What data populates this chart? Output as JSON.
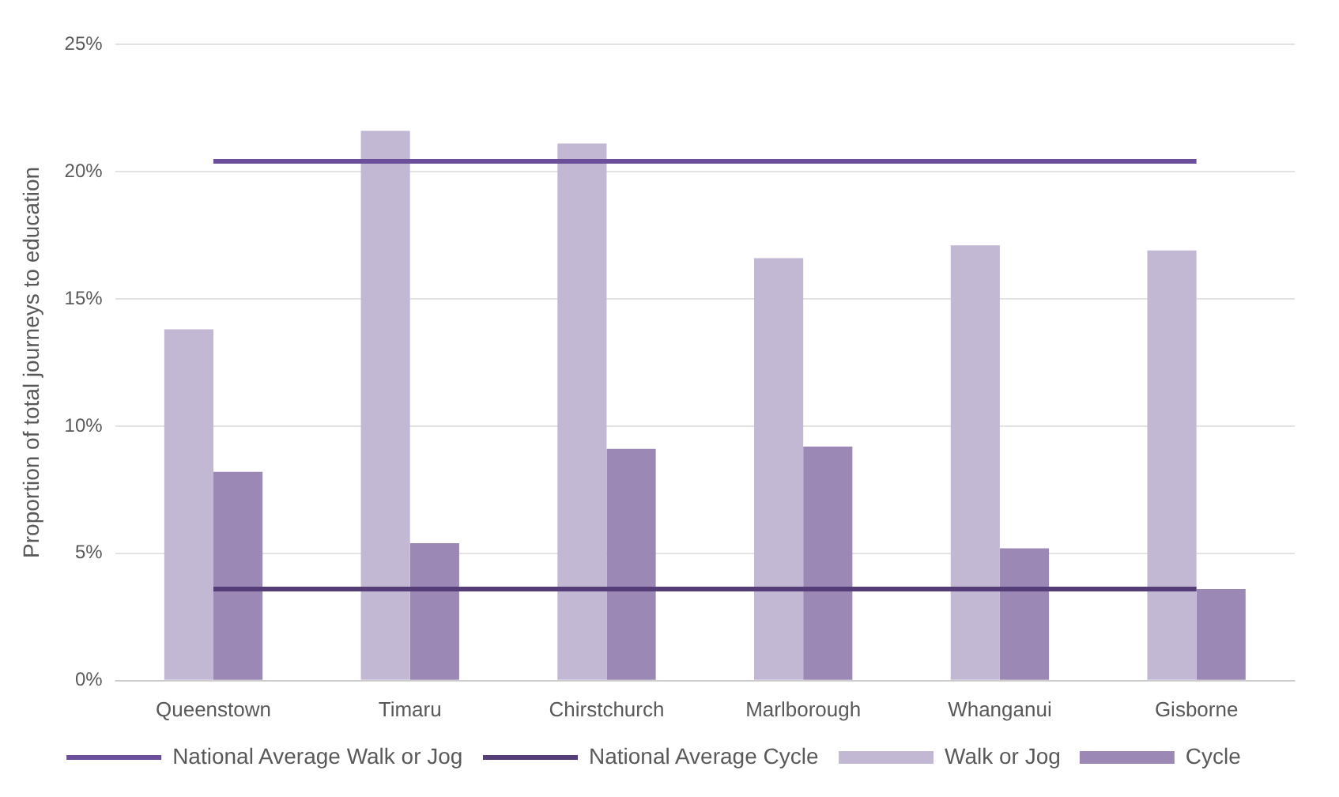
{
  "chart_data": {
    "type": "bar",
    "ylabel": "Proportion of total journeys to education",
    "categories": [
      "Queenstown",
      "Timaru",
      "Chirstchurch",
      "Marlborough",
      "Whanganui",
      "Gisborne"
    ],
    "series": [
      {
        "name": "Walk or Jog",
        "color": "#c3b8d3",
        "values": [
          13.8,
          21.6,
          21.1,
          16.6,
          17.1,
          16.9
        ]
      },
      {
        "name": "Cycle",
        "color": "#9b88b5",
        "values": [
          8.2,
          5.4,
          9.1,
          9.2,
          5.2,
          3.6
        ]
      },
      {
        "name": "National Average Walk or Jog",
        "type": "line",
        "color": "#6b4f9a",
        "values": [
          20.4,
          20.4,
          20.4,
          20.4,
          20.4,
          20.4
        ]
      },
      {
        "name": "National Average Cycle",
        "type": "line",
        "color": "#553d78",
        "values": [
          3.6,
          3.6,
          3.6,
          3.6,
          3.6,
          3.6
        ]
      }
    ],
    "ylim": [
      0,
      25
    ],
    "yticks": [
      {
        "value": 0,
        "label": "0%"
      },
      {
        "value": 5,
        "label": "5%"
      },
      {
        "value": 10,
        "label": "10%"
      },
      {
        "value": 15,
        "label": "15%"
      },
      {
        "value": 20,
        "label": "20%"
      },
      {
        "value": 25,
        "label": "25%"
      }
    ],
    "grid": "y",
    "legend": "bottom",
    "marker": "none",
    "line_style": "solid"
  }
}
